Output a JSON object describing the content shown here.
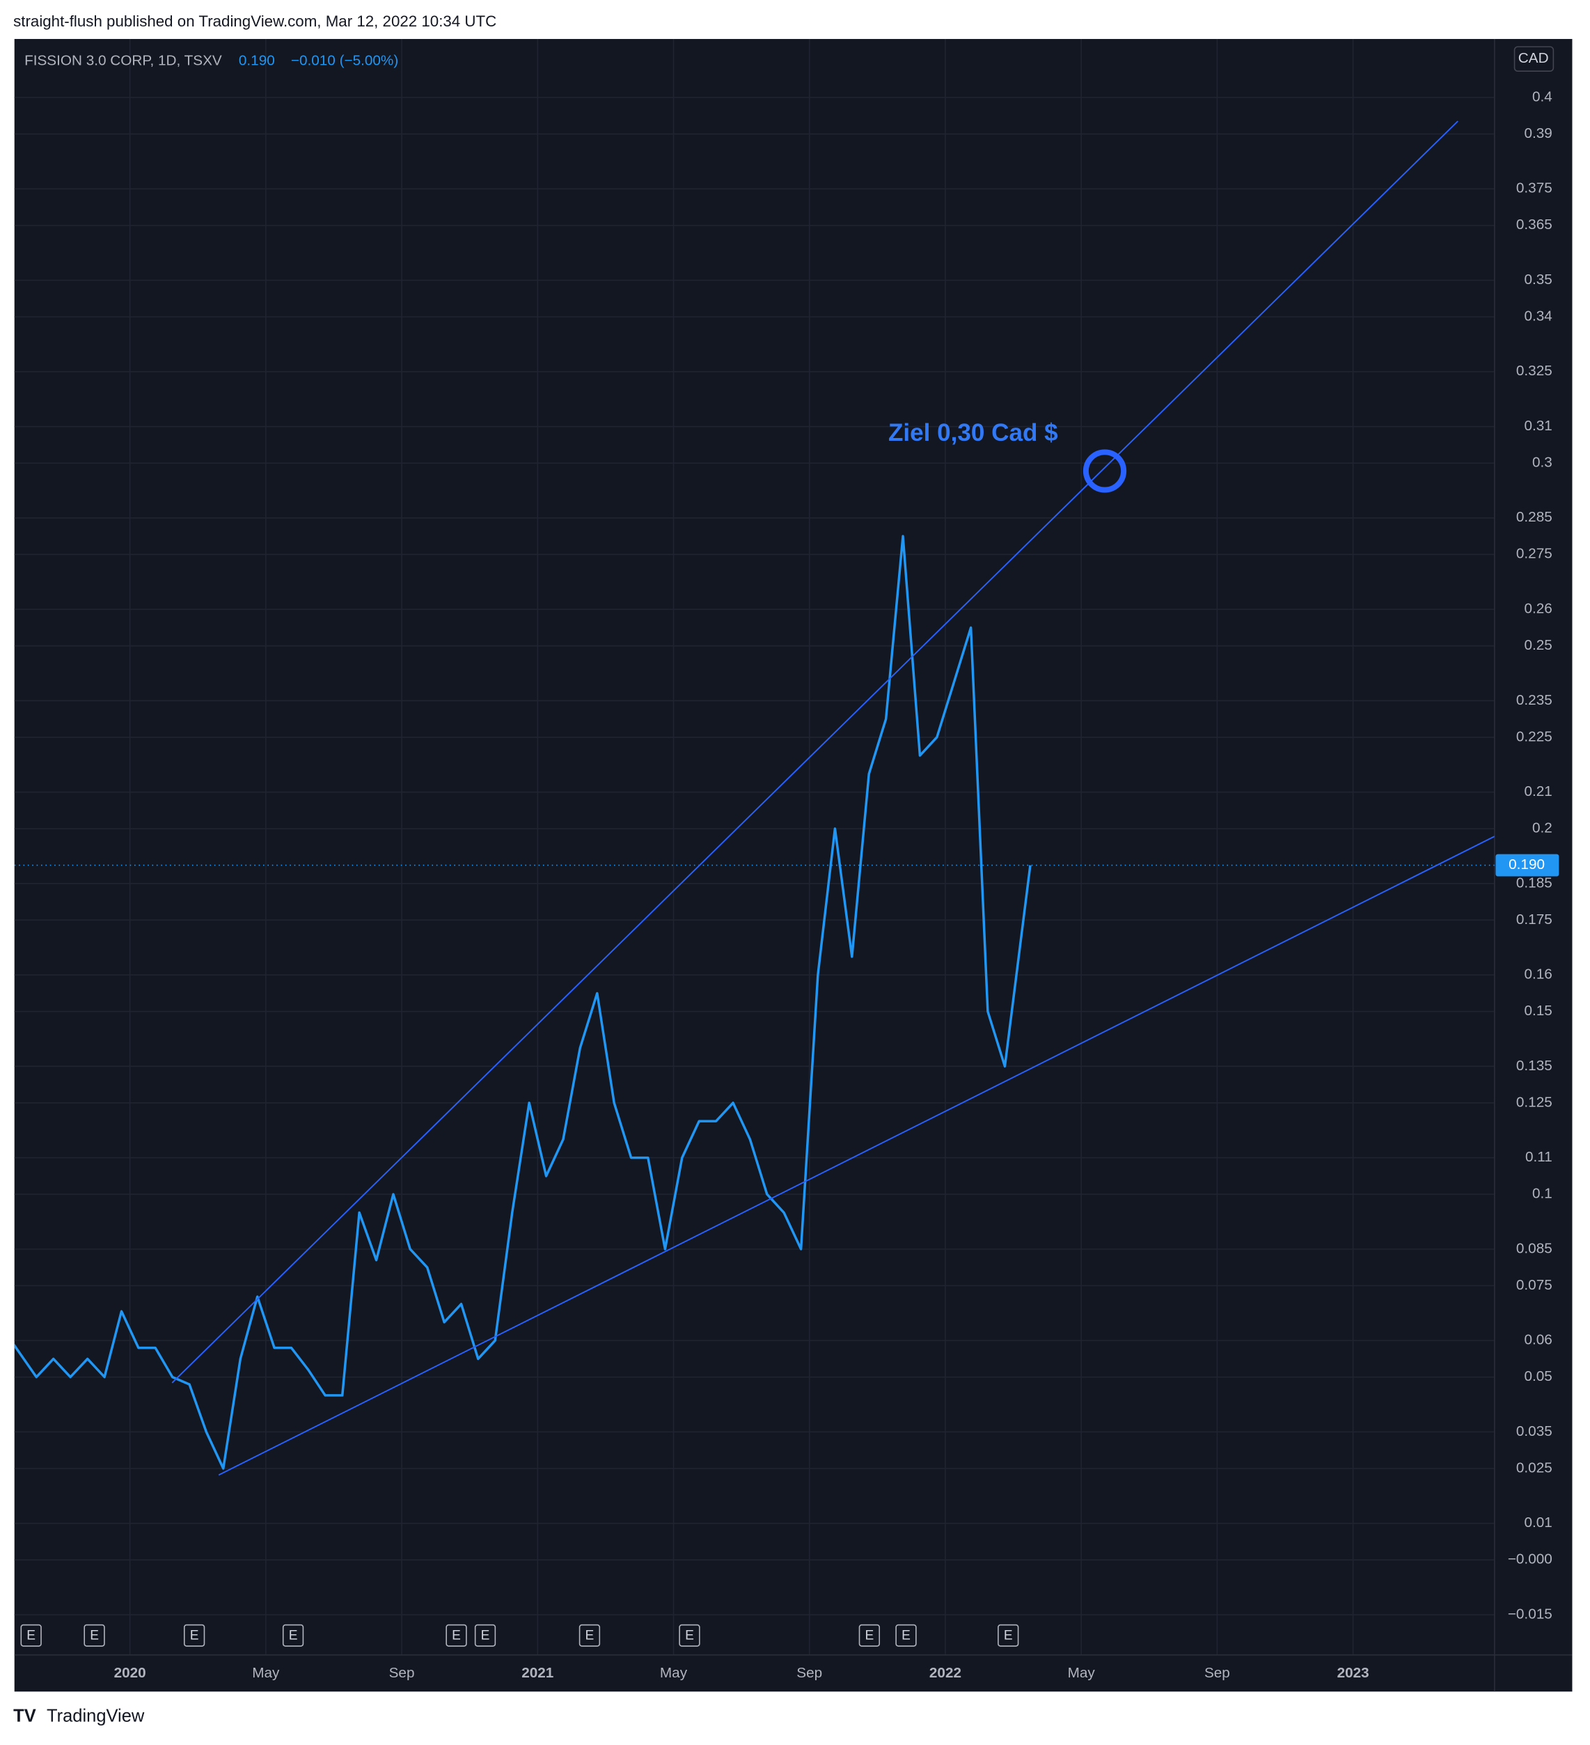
{
  "header": "straight-flush published on TradingView.com, Mar 12, 2022 10:34 UTC",
  "footer": "TradingView",
  "chart_data": {
    "type": "line",
    "title": "FISSION 3.0 CORP, 1D, TSXV",
    "legend_price": "0.190",
    "legend_change": "−0.010 (−5.00%)",
    "currency": "CAD",
    "annotation": "Ziel 0,30 Cad $",
    "last_price": {
      "value": 0.19,
      "label": "0.190"
    },
    "earnings_markers": [
      "E",
      "E",
      "E",
      "E",
      "E",
      "E",
      "E",
      "E",
      "E",
      "E",
      "E"
    ],
    "x": [
      "2019-09",
      "2019-10",
      "2019-10",
      "2019-11",
      "2019-11",
      "2019-12",
      "2019-12",
      "2020-01",
      "2020-01",
      "2020-02",
      "2020-02",
      "2020-03",
      "2020-03",
      "2020-04",
      "2020-04",
      "2020-05",
      "2020-05",
      "2020-06",
      "2020-06",
      "2020-07",
      "2020-07",
      "2020-08",
      "2020-08",
      "2020-09",
      "2020-09",
      "2020-10",
      "2020-10",
      "2020-11",
      "2020-11",
      "2020-12",
      "2020-12",
      "2021-01",
      "2021-01",
      "2021-02",
      "2021-02",
      "2021-03",
      "2021-03",
      "2021-04",
      "2021-04",
      "2021-05",
      "2021-05",
      "2021-06",
      "2021-06",
      "2021-07",
      "2021-07",
      "2021-08",
      "2021-08",
      "2021-09",
      "2021-09",
      "2021-10",
      "2021-10",
      "2021-11",
      "2021-11",
      "2021-12",
      "2021-12",
      "2022-01",
      "2022-01",
      "2022-02",
      "2022-02",
      "2022-03"
    ],
    "series": [
      {
        "color": "#2196f3",
        "values": [
          0.06,
          0.05,
          0.055,
          0.05,
          0.055,
          0.05,
          0.068,
          0.058,
          0.058,
          0.05,
          0.048,
          0.035,
          0.025,
          0.055,
          0.072,
          0.058,
          0.058,
          0.052,
          0.045,
          0.045,
          0.095,
          0.082,
          0.1,
          0.085,
          0.08,
          0.065,
          0.07,
          0.055,
          0.06,
          0.095,
          0.125,
          0.105,
          0.115,
          0.14,
          0.155,
          0.125,
          0.11,
          0.11,
          0.085,
          0.11,
          0.12,
          0.12,
          0.125,
          0.115,
          0.1,
          0.095,
          0.085,
          0.16,
          0.2,
          0.165,
          0.215,
          0.23,
          0.28,
          0.22,
          0.225,
          0.24,
          0.255,
          0.15,
          0.135,
          0.19
        ]
      }
    ],
    "ylim": [
      -0.026,
      0.416
    ],
    "yticks": [
      0.4,
      0.39,
      0.375,
      0.365,
      0.35,
      0.34,
      0.325,
      0.31,
      0.3,
      0.285,
      0.275,
      0.26,
      0.25,
      0.235,
      0.225,
      0.21,
      0.2,
      0.185,
      0.175,
      0.16,
      0.15,
      0.135,
      0.125,
      0.11,
      0.1,
      0.085,
      0.075,
      0.06,
      0.05,
      0.035,
      0.025,
      0.01,
      {
        "value": 0,
        "label": "−0.000"
      },
      {
        "value": -0.015,
        "label": "−0.015"
      }
    ],
    "xticks": [
      {
        "value": "2020-01",
        "label": "2020"
      },
      {
        "value": "2020-05",
        "label": "May"
      },
      {
        "value": "2020-09",
        "label": "Sep"
      },
      {
        "value": "2021-01",
        "label": "2021"
      },
      {
        "value": "2021-05",
        "label": "May"
      },
      {
        "value": "2021-09",
        "label": "Sep"
      },
      {
        "value": "2022-01",
        "label": "2022"
      },
      {
        "value": "2022-05",
        "label": "May"
      },
      {
        "value": "2022-09",
        "label": "Sep"
      },
      {
        "value": "2023-01",
        "label": "2023"
      }
    ],
    "grid": true
  }
}
